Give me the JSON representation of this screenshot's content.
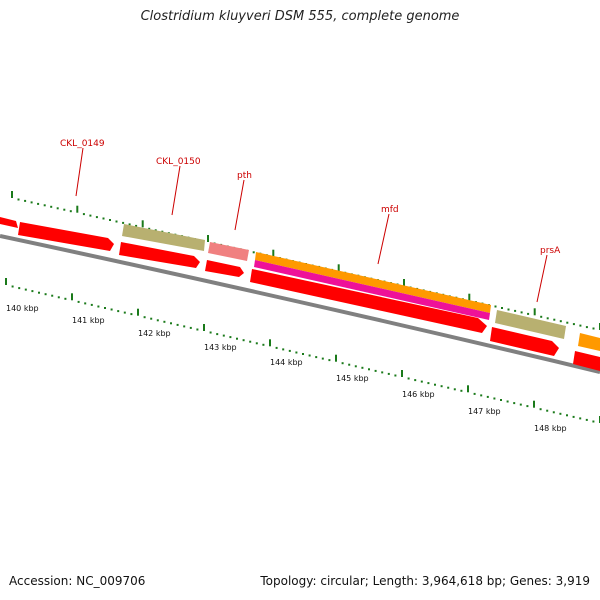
{
  "title": "Clostridium kluyveri DSM 555, complete genome",
  "footer": {
    "accession_text": "Accession: NC_009706",
    "stats_text": "Topology: circular; Length: 3,964,618 bp; Genes: 3,919"
  },
  "colors": {
    "cds": "#ff0000",
    "rrna": "#f08080",
    "trna_like": "#b8b070",
    "orange": "#ff9900",
    "magenta": "#ee1199",
    "backbone": "#808080",
    "tick": "#1a7a1a",
    "label": "#cc0000"
  },
  "genes": [
    {
      "name": "CKL_0149"
    },
    {
      "name": "CKL_0150"
    },
    {
      "name": "pth"
    },
    {
      "name": "mfd"
    },
    {
      "name": "prsA"
    }
  ],
  "scale": [
    {
      "label": "140 kbp"
    },
    {
      "label": "141 kbp"
    },
    {
      "label": "142 kbp"
    },
    {
      "label": "143 kbp"
    },
    {
      "label": "144 kbp"
    },
    {
      "label": "145 kbp"
    },
    {
      "label": "146 kbp"
    },
    {
      "label": "147 kbp"
    },
    {
      "label": "148 kbp"
    }
  ]
}
